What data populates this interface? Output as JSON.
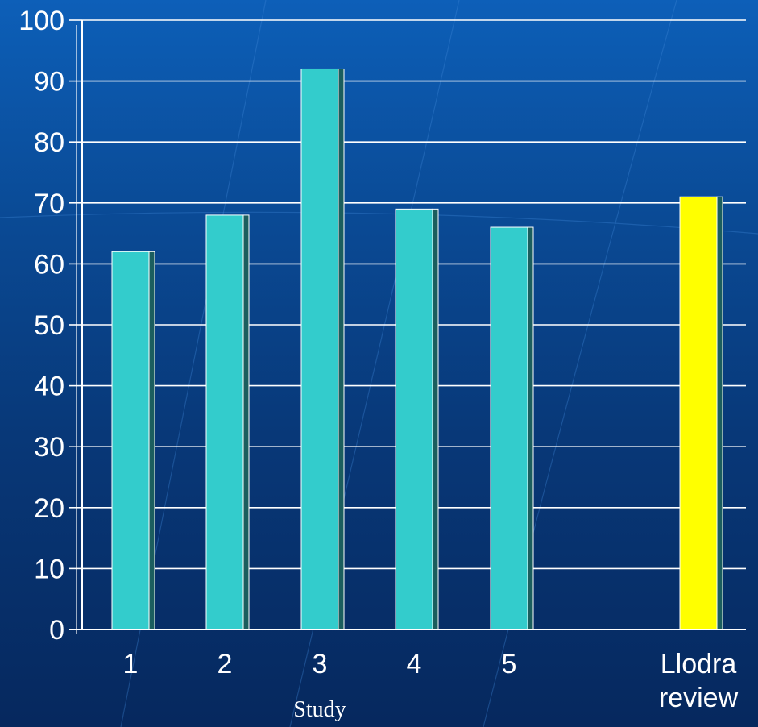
{
  "chart_data": {
    "type": "bar",
    "categories": [
      "1",
      "2",
      "3",
      "4",
      "5",
      "Llodra review"
    ],
    "category_lines": [
      [
        "1"
      ],
      [
        "2"
      ],
      [
        "3"
      ],
      [
        "4"
      ],
      [
        "5"
      ],
      [
        "Llodra",
        "review"
      ]
    ],
    "values": [
      62,
      68,
      92,
      69,
      66,
      71
    ],
    "bar_colors": [
      "#33cccc",
      "#33cccc",
      "#33cccc",
      "#33cccc",
      "#33cccc",
      "#ffff00"
    ],
    "title": "",
    "xlabel": "Study",
    "ylabel": "",
    "ylim": [
      0,
      100
    ],
    "yticks": [
      0,
      10,
      20,
      30,
      40,
      50,
      60,
      70,
      80,
      90,
      100
    ],
    "grid": true,
    "legend": "none"
  },
  "colors": {
    "background_top": "#0d5fb8",
    "background_bottom": "#06285e",
    "axis": "#ffffff",
    "grid": "#ffffff",
    "bar_shadow": "#1b5e5e"
  }
}
